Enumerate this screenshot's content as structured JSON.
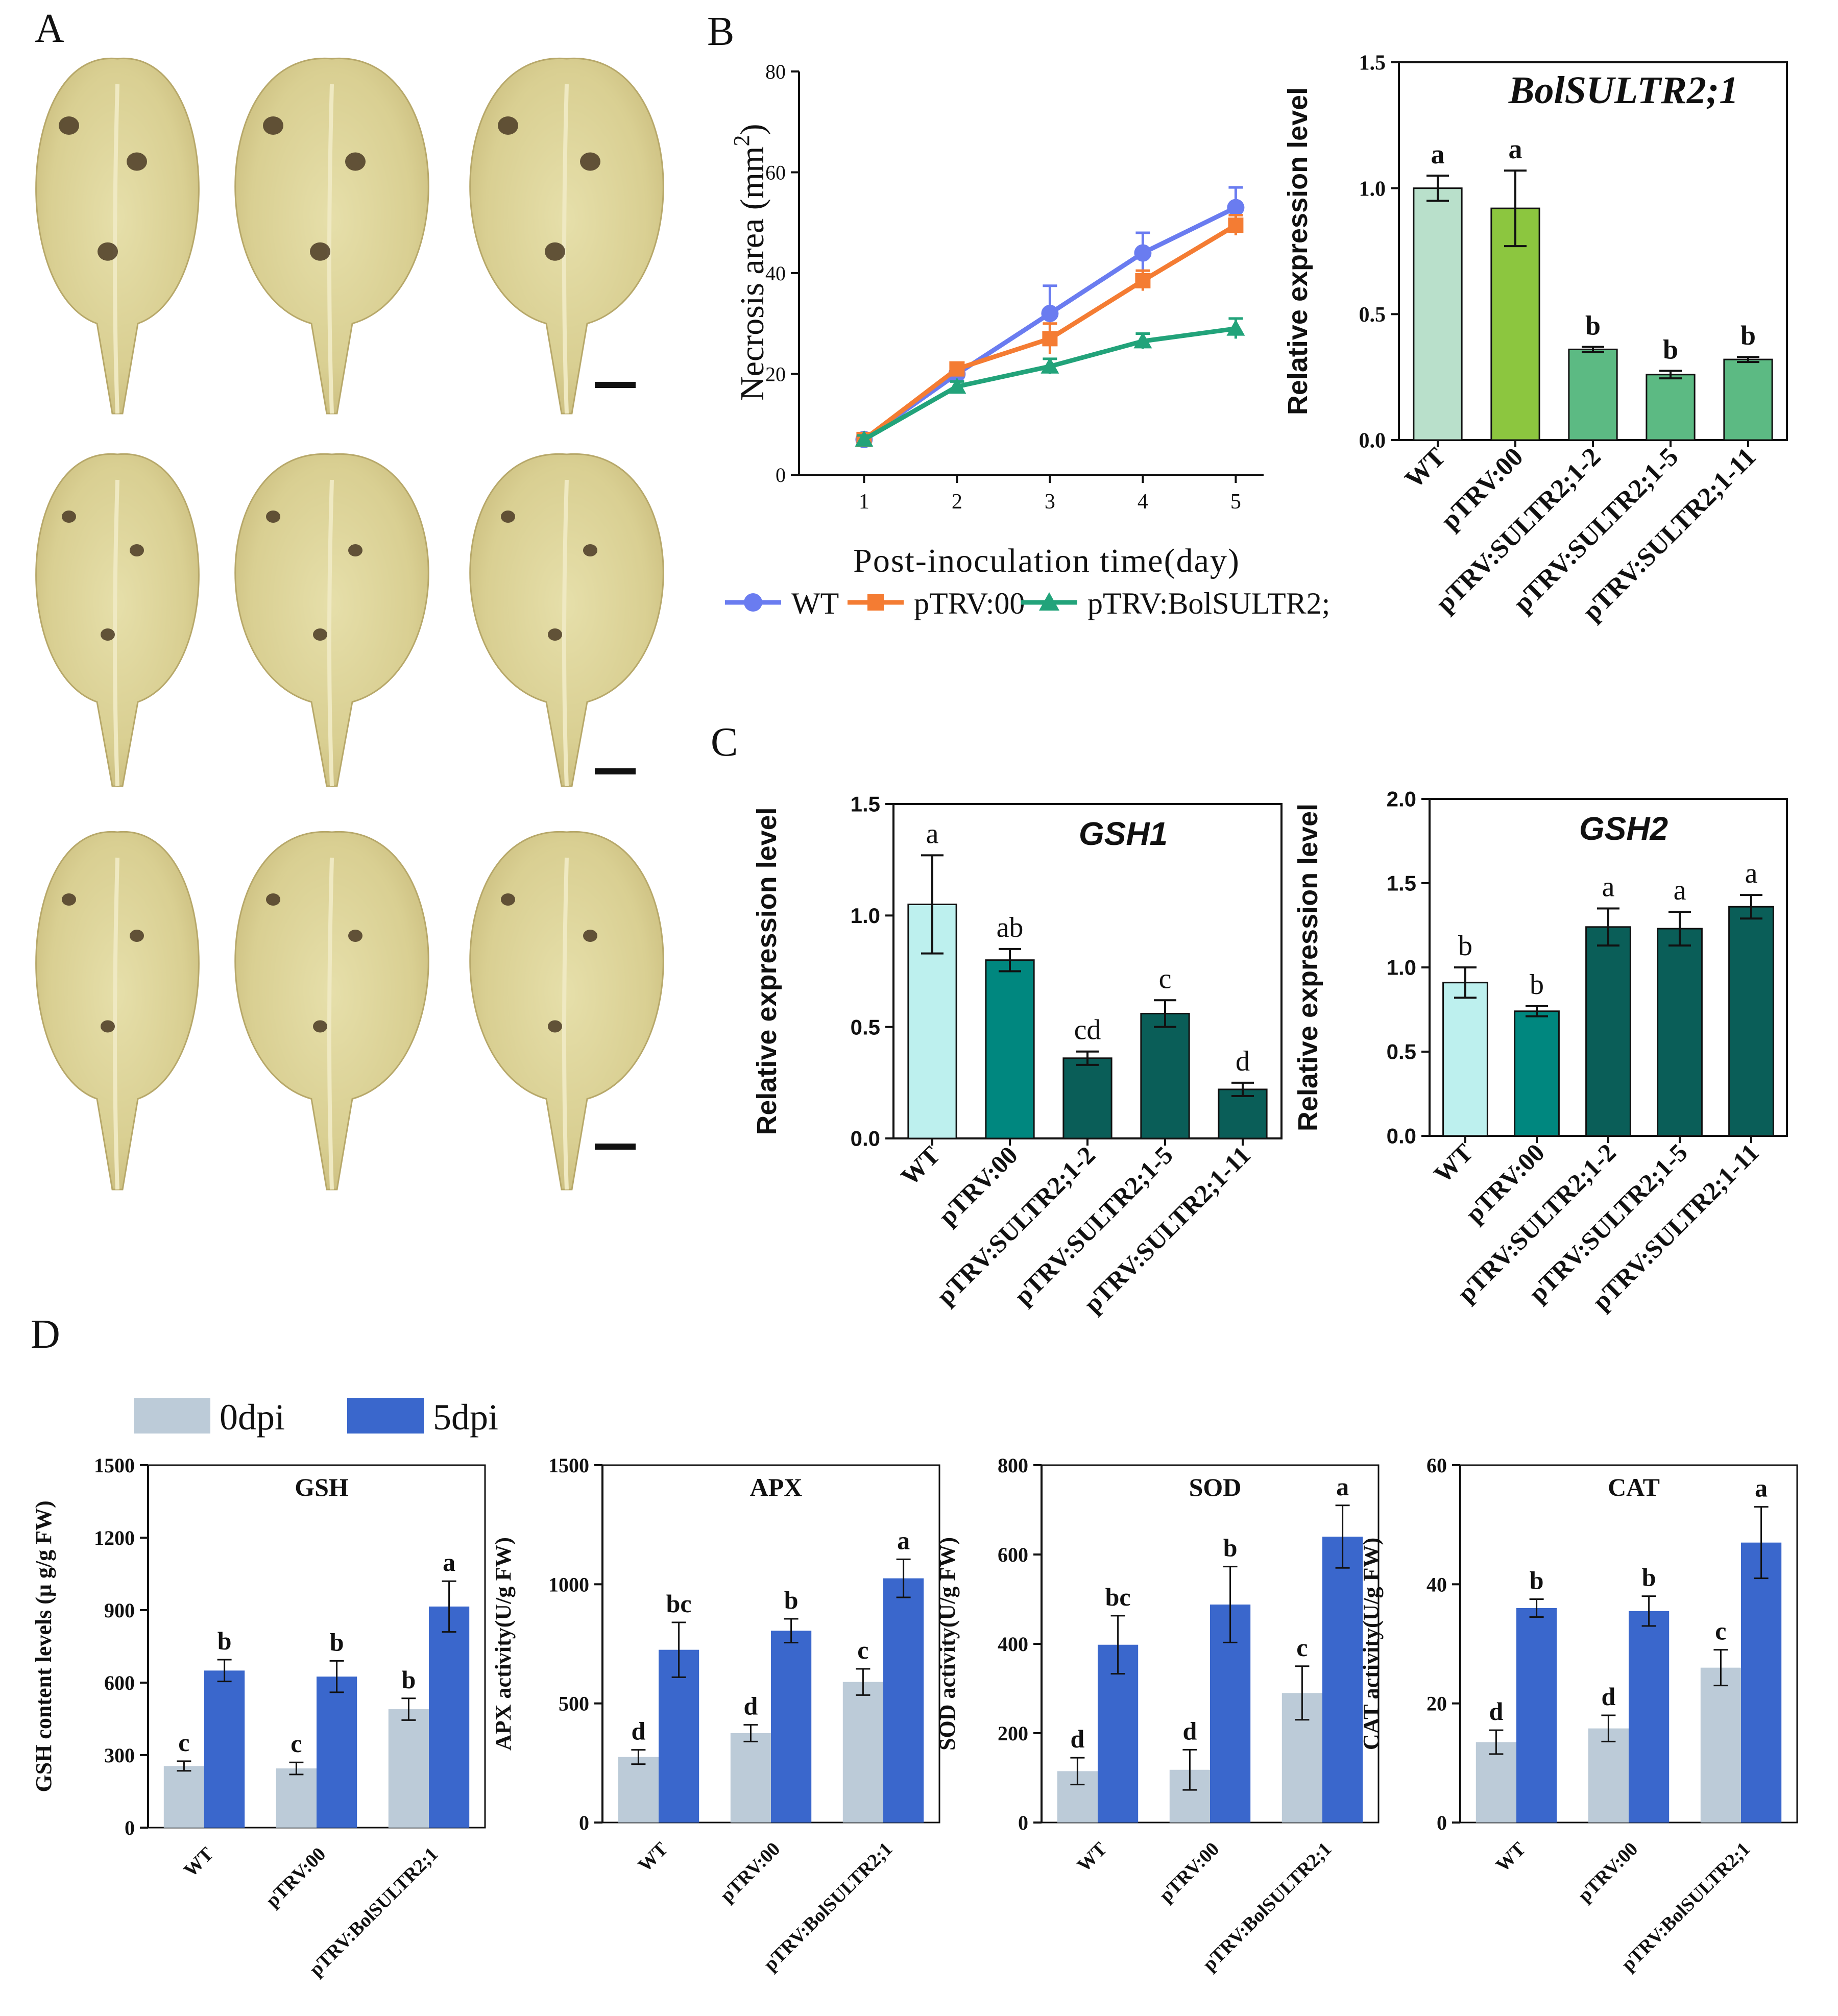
{
  "panel_labels": [
    "A",
    "B",
    "C",
    "D"
  ],
  "chart_data": [
    {
      "id": "necrosis",
      "type": "line",
      "title": "",
      "xlabel": "Post-inoculation time(day)",
      "ylabel": "Necrosis  area (mm",
      "ylabel_sup": "2",
      "ylabel_close": ")",
      "x": [
        1,
        2,
        3,
        4,
        5
      ],
      "xlim": [
        0.3,
        5.3
      ],
      "ylim": [
        0,
        80
      ],
      "yticks": [
        0,
        20,
        40,
        60,
        80
      ],
      "grid": false,
      "legend": "bottom",
      "series": [
        {
          "name": "WT",
          "values": [
            7,
            20,
            32,
            44,
            53
          ],
          "err": [
            0.8,
            1.5,
            5.5,
            4,
            4
          ],
          "color": "#6a7cf0",
          "marker": "circle"
        },
        {
          "name": "pTRV:00",
          "values": [
            7,
            21,
            27,
            38.5,
            49.5
          ],
          "err": [
            0.8,
            1.2,
            3,
            2,
            2
          ],
          "color": "#f47c33",
          "marker": "square"
        },
        {
          "name": "pTRV:BolSULTR2;",
          "values": [
            7,
            17.5,
            21.5,
            26.5,
            29
          ],
          "err": [
            0.8,
            1,
            1.5,
            1.5,
            2
          ],
          "color": "#22a37a",
          "marker": "triangle"
        }
      ]
    },
    {
      "id": "bolsultr",
      "type": "bar",
      "title": "BolSULTR2;1",
      "ylabel": "Relative expression level",
      "categories": [
        "WT",
        "pTRV:00",
        "pTRV:SULTR2;1-2",
        "pTRV:SULTR2;1-5",
        "pTRV:SULTR2;1-11"
      ],
      "values": [
        1.0,
        0.92,
        0.36,
        0.26,
        0.32
      ],
      "err": [
        0.05,
        0.15,
        0.01,
        0.015,
        0.01
      ],
      "letters": [
        "a",
        "a",
        "b",
        "b",
        "b"
      ],
      "colors": [
        "#b9e0cb",
        "#8cc63f",
        "#5cba83",
        "#5cba83",
        "#5cba83"
      ],
      "ylim": [
        0,
        1.5
      ],
      "yticks": [
        "0.0",
        "0.5",
        "1.0",
        "1.5"
      ]
    },
    {
      "id": "gsh1",
      "type": "bar",
      "title": "GSH1",
      "ylabel": "Relative expression level",
      "categories": [
        "WT",
        "pTRV:00",
        "pTRV:SULTR2;1-2",
        "pTRV:SULTR2;1-5",
        "pTRV:SULTR2;1-11"
      ],
      "values": [
        1.05,
        0.8,
        0.36,
        0.56,
        0.22
      ],
      "err": [
        0.22,
        0.05,
        0.03,
        0.06,
        0.03
      ],
      "letters": [
        "a",
        "ab",
        "cd",
        "c",
        "d"
      ],
      "colors": [
        "#bdf0ee",
        "#00877f",
        "#0a5e58",
        "#0a5e58",
        "#0a5e58"
      ],
      "ylim": [
        0,
        1.5
      ],
      "yticks": [
        "0.0",
        "0.5",
        "1.0",
        "1.5"
      ]
    },
    {
      "id": "gsh2",
      "type": "bar",
      "title": "GSH2",
      "ylabel": "Relative expression level",
      "categories": [
        "WT",
        "pTRV:00",
        "pTRV:SULTR2;1-2",
        "pTRV:SULTR2;1-5",
        "pTRV:SULTR2;1-11"
      ],
      "values": [
        0.91,
        0.74,
        1.24,
        1.23,
        1.36
      ],
      "err": [
        0.09,
        0.03,
        0.11,
        0.1,
        0.07
      ],
      "letters": [
        "b",
        "b",
        "a",
        "a",
        "a"
      ],
      "colors": [
        "#bdf0ee",
        "#00877f",
        "#0a5e58",
        "#0a5e58",
        "#0a5e58"
      ],
      "ylim": [
        0,
        2.0
      ],
      "yticks": [
        "0.0",
        "0.5",
        "1.0",
        "1.5",
        "2.0"
      ]
    },
    {
      "id": "gsh_content",
      "type": "bar",
      "title": "GSH",
      "ylabel": "GSH content levels (μ g/g FW)",
      "categories": [
        "WT",
        "pTRV:00",
        "pTRV:BolSULTR2;1"
      ],
      "series": [
        {
          "name": "0dpi",
          "values": [
            255,
            245,
            490
          ],
          "err": [
            20,
            25,
            45
          ],
          "letters": [
            "c",
            "c",
            "b"
          ],
          "color": "#bccbd8"
        },
        {
          "name": "5dpi",
          "values": [
            650,
            625,
            915
          ],
          "err": [
            45,
            65,
            105
          ],
          "letters": [
            "b",
            "b",
            "a"
          ],
          "color": "#3a67cc"
        }
      ],
      "ylim": [
        0,
        1500
      ],
      "yticks": [
        0,
        300,
        600,
        900,
        1200,
        1500
      ]
    },
    {
      "id": "apx",
      "type": "bar",
      "title": "APX",
      "ylabel": "APX activity(U/g FW)",
      "categories": [
        "WT",
        "pTRV:00",
        "pTRV:BolSULTR2;1"
      ],
      "series": [
        {
          "name": "0dpi",
          "values": [
            275,
            375,
            590
          ],
          "err": [
            30,
            35,
            55
          ],
          "letters": [
            "d",
            "d",
            "c"
          ],
          "color": "#bccbd8"
        },
        {
          "name": "5dpi",
          "values": [
            725,
            805,
            1025
          ],
          "err": [
            115,
            50,
            80
          ],
          "letters": [
            "bc",
            "b",
            "a"
          ],
          "color": "#3a67cc"
        }
      ],
      "ylim": [
        0,
        1500
      ],
      "yticks": [
        0,
        500,
        1000,
        1500
      ]
    },
    {
      "id": "sod",
      "type": "bar",
      "title": "SOD",
      "ylabel": "SOD activity(U/g FW)",
      "categories": [
        "WT",
        "pTRV:00",
        "pTRV:BolSULTR2;1"
      ],
      "series": [
        {
          "name": "0dpi",
          "values": [
            115,
            118,
            290
          ],
          "err": [
            30,
            45,
            60
          ],
          "letters": [
            "d",
            "d",
            "c"
          ],
          "color": "#bccbd8"
        },
        {
          "name": "5dpi",
          "values": [
            398,
            488,
            640
          ],
          "err": [
            65,
            85,
            70
          ],
          "letters": [
            "bc",
            "b",
            "a"
          ],
          "color": "#3a67cc"
        }
      ],
      "ylim": [
        0,
        800
      ],
      "yticks": [
        0,
        200,
        400,
        600,
        800
      ]
    },
    {
      "id": "cat",
      "type": "bar",
      "title": "CAT",
      "ylabel": "CAT activity(U/g FW)",
      "categories": [
        "WT",
        "pTRV:00",
        "pTRV:BolSULTR2;1"
      ],
      "series": [
        {
          "name": "0dpi",
          "values": [
            13.5,
            15.8,
            26
          ],
          "err": [
            2,
            2.2,
            3
          ],
          "letters": [
            "d",
            "d",
            "c"
          ],
          "color": "#bccbd8"
        },
        {
          "name": "5dpi",
          "values": [
            36,
            35.5,
            47
          ],
          "err": [
            1.5,
            2.5,
            6
          ],
          "letters": [
            "b",
            "b",
            "a"
          ],
          "color": "#3a67cc"
        }
      ],
      "ylim": [
        0,
        60
      ],
      "yticks": [
        0,
        20,
        40,
        60
      ]
    }
  ],
  "legend_d": [
    "0dpi",
    "5dpi"
  ]
}
